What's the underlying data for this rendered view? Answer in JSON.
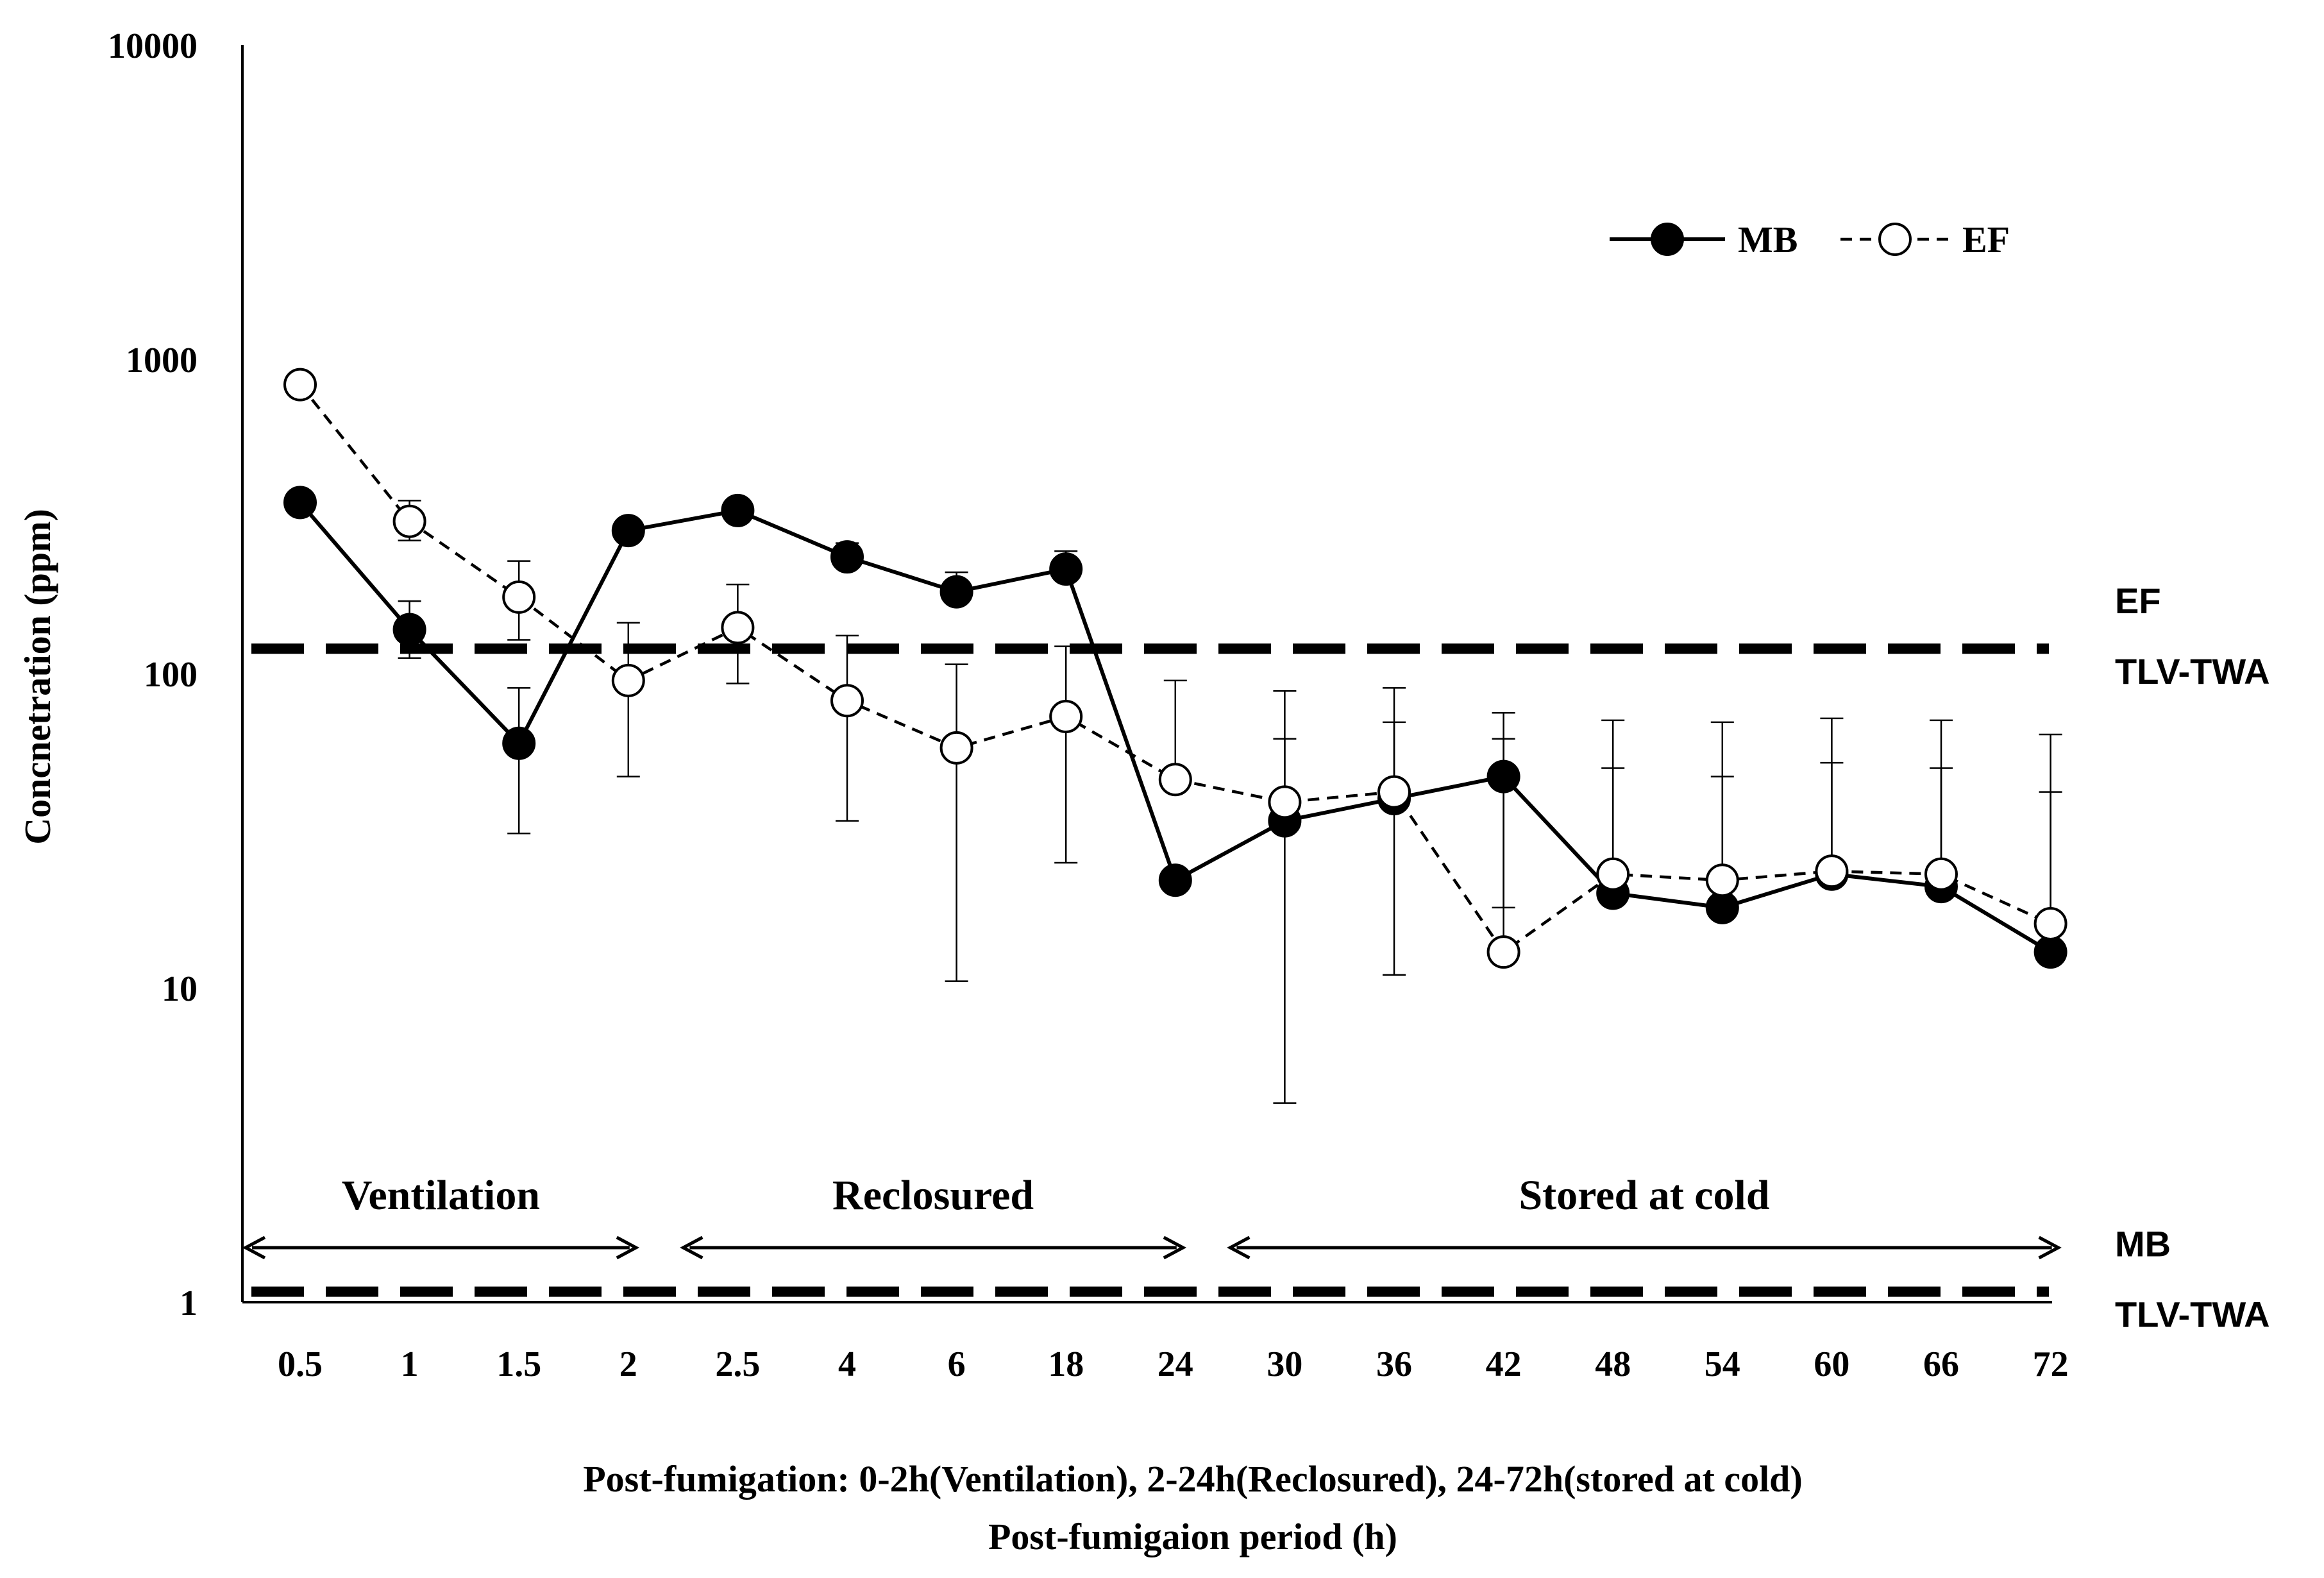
{
  "chart_data": {
    "type": "line",
    "yscale": "log",
    "ylim": [
      1,
      10000
    ],
    "yticks": [
      "10000",
      "1000",
      "100",
      "10",
      "1"
    ],
    "ylabel": "Concnetration (ppm)",
    "xlabel_line1": "Post-fumigation: 0-2h(Ventilation), 2-24h(Reclosured),  24-72h(stored at cold)",
    "xlabel_line2": "Post-fumigaion period (h)",
    "categories": [
      "0.5",
      "1",
      "1.5",
      "2",
      "2.5",
      "4",
      "6",
      "18",
      "24",
      "30",
      "36",
      "42",
      "48",
      "54",
      "60",
      "66",
      "72"
    ],
    "series": [
      {
        "name": "MB",
        "style": "solid",
        "marker": "filled",
        "values": [
          350,
          138,
          60,
          285,
          330,
          235,
          182,
          215,
          22,
          34,
          40,
          47,
          20,
          18,
          23,
          21,
          13
        ],
        "err_low": [
          null,
          112,
          31,
          null,
          null,
          null,
          null,
          null,
          null,
          4.3,
          11,
          18,
          null,
          null,
          null,
          null,
          null
        ],
        "err_high": [
          null,
          170,
          90,
          null,
          null,
          260,
          210,
          245,
          null,
          62,
          70,
          62,
          50,
          47,
          52,
          50,
          42
        ]
      },
      {
        "name": "EF",
        "style": "dashed",
        "marker": "open",
        "values": [
          830,
          305,
          175,
          95,
          140,
          82,
          58,
          73,
          46,
          39,
          42,
          13,
          23,
          22,
          23.5,
          23,
          16
        ],
        "err_low": [
          null,
          265,
          128,
          47,
          93,
          34,
          10.5,
          25,
          null,
          null,
          null,
          null,
          null,
          null,
          null,
          null,
          null
        ],
        "err_high": [
          null,
          355,
          228,
          145,
          192,
          132,
          107,
          122,
          95,
          88,
          90,
          75,
          71,
          70,
          72,
          71,
          64
        ]
      }
    ],
    "reference_lines": [
      {
        "name": "EF TLV-TWA",
        "value": 120,
        "label_line1": "EF",
        "label_line2": "TLV-TWA"
      },
      {
        "name": "MB TLV-TWA",
        "value": 1.08,
        "label_line1": "MB",
        "label_line2": "TLV-TWA"
      }
    ],
    "periods": [
      {
        "label": "Ventilation",
        "from": "0.5",
        "to": "2"
      },
      {
        "label": "Reclosured",
        "from": "2.5",
        "to": "24"
      },
      {
        "label": "Stored at cold",
        "from": "30",
        "to": "72"
      }
    ],
    "legend_position": "top-right",
    "colors": {
      "line": "#000000",
      "open_marker_fill": "#ffffff"
    }
  }
}
